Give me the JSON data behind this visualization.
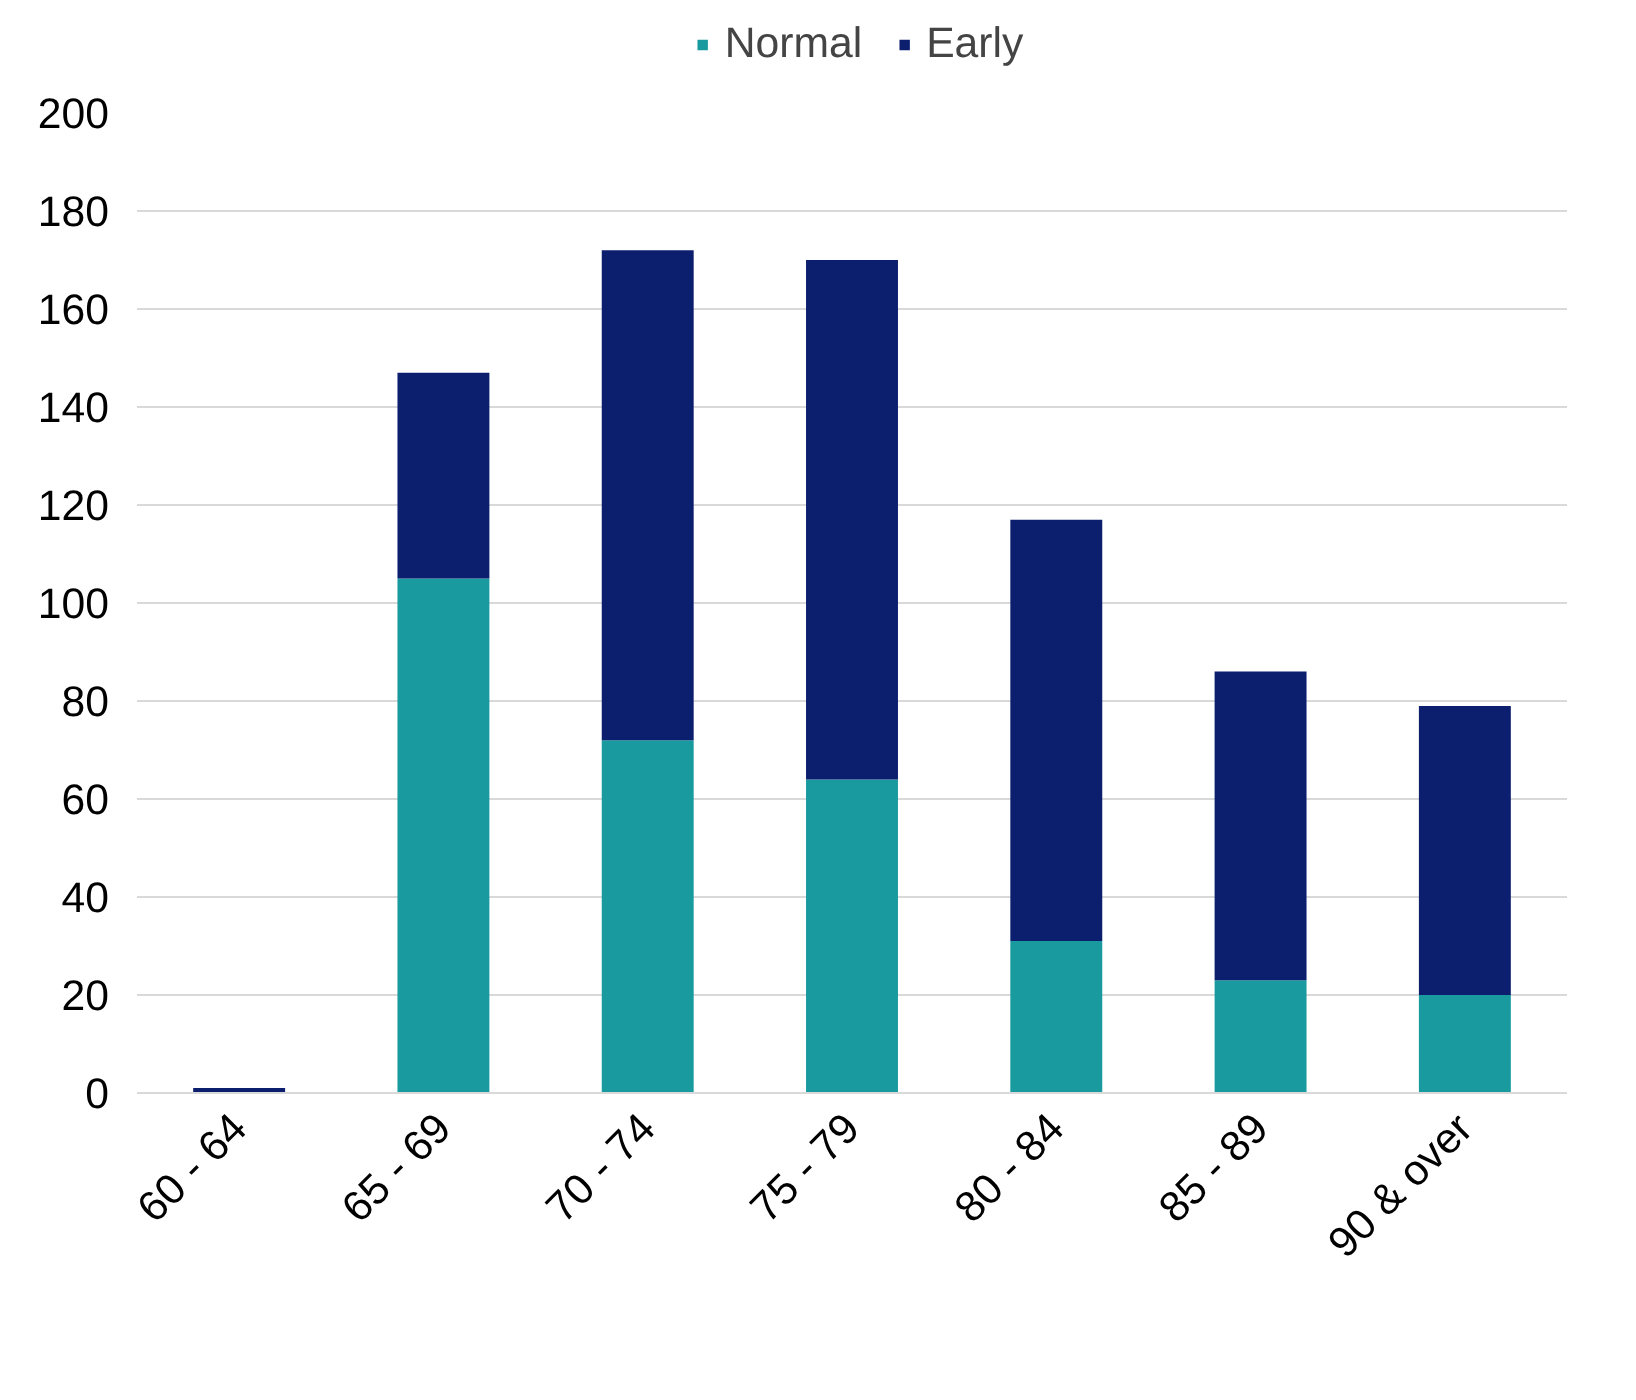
{
  "chart_data": {
    "type": "bar",
    "stacked": true,
    "categories": [
      "60 - 64",
      "65 - 69",
      "70 - 74",
      "75 - 79",
      "80 - 84",
      "85 - 89",
      "90 & over"
    ],
    "series": [
      {
        "name": "Normal",
        "color": "#189a9e",
        "values": [
          0,
          105,
          72,
          64,
          31,
          23,
          20
        ]
      },
      {
        "name": "Early",
        "color": "#0c1f6e",
        "values": [
          1,
          42,
          100,
          106,
          86,
          63,
          59
        ]
      }
    ],
    "ylim": [
      0,
      200
    ],
    "yticks": [
      0,
      20,
      40,
      60,
      80,
      100,
      120,
      140,
      160,
      180,
      200
    ],
    "grid": "y",
    "legend": "top"
  }
}
